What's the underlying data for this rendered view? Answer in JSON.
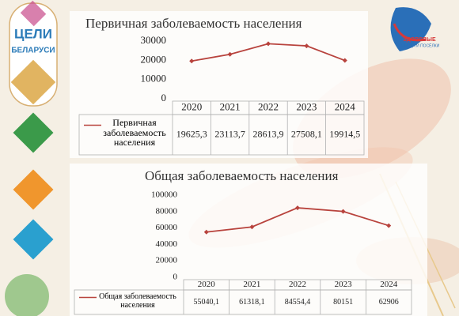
{
  "chart_data": [
    {
      "type": "line",
      "title": "Первичная заболеваемость населения",
      "categories": [
        "2020",
        "2021",
        "2022",
        "2023",
        "2024"
      ],
      "series": [
        {
          "name": "Первичная заболеваемость населения",
          "color": "#b8433d",
          "values": [
            19625.3,
            23113.7,
            28613.9,
            27508.1,
            19914.5
          ],
          "value_labels": [
            "19625,3",
            "23113,7",
            "28613,9",
            "27508,1",
            "19914,5"
          ]
        }
      ],
      "ylim": [
        0,
        30000
      ],
      "yticks": [
        0,
        10000,
        20000,
        30000
      ],
      "grid": false
    },
    {
      "type": "line",
      "title": "Общая заболеваемость населения",
      "categories": [
        "2020",
        "2021",
        "2022",
        "2023",
        "2024"
      ],
      "series": [
        {
          "name": "Общая заболеваемость населения",
          "color": "#b8433d",
          "values": [
            55040.1,
            61318.1,
            84554.4,
            80151,
            62906
          ],
          "value_labels": [
            "55040,1",
            "61318,1",
            "84554,4",
            "80151",
            "62906"
          ]
        }
      ],
      "ylim": [
        0,
        100000
      ],
      "yticks": [
        0,
        20000,
        40000,
        60000,
        80000,
        100000
      ],
      "grid": false
    }
  ],
  "logos": {
    "goals": [
      "ЦЕЛИ",
      "БЕЛАРУСИ"
    ],
    "healthy": [
      "ЗДОРОВЫЕ",
      "ГОРОДА И ПОСЁЛКИ"
    ]
  }
}
